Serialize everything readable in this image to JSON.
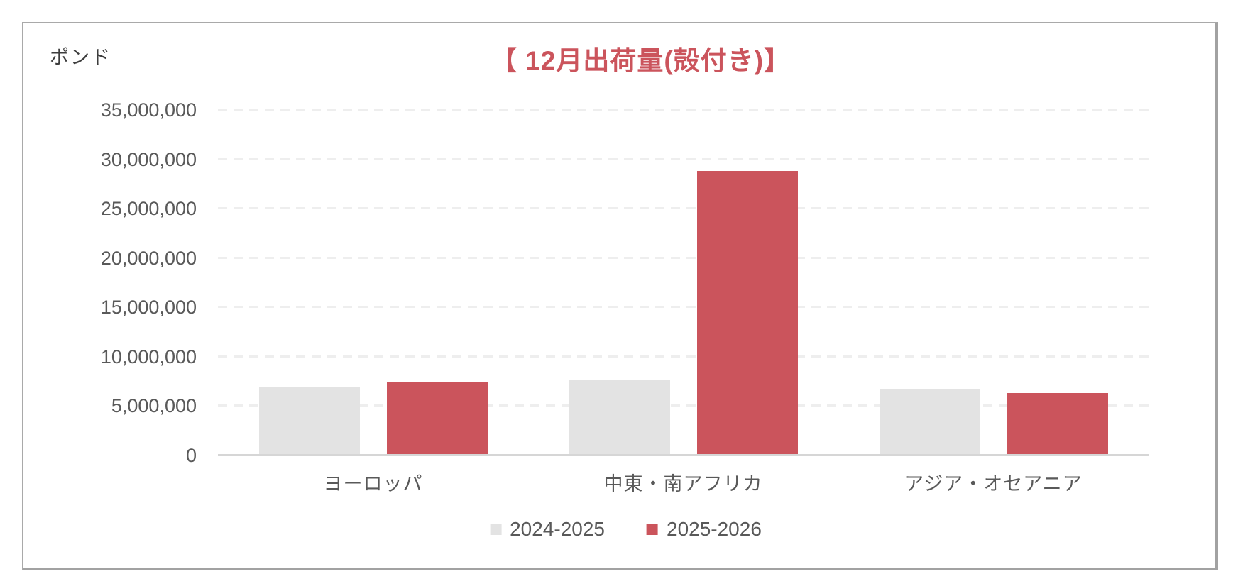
{
  "unit_label": "ポンド",
  "title": "【 12月出荷量(殻付き)】",
  "chart_data": {
    "type": "bar",
    "title": "【 12月出荷量(殻付き)】",
    "ylabel": "ポンド",
    "xlabel": "",
    "categories": [
      "ヨーロッパ",
      "中東・南アフリカ",
      "アジア・オセアニア"
    ],
    "series": [
      {
        "name": "2024-2025",
        "color": "#e3e3e3",
        "values": [
          7000000,
          7600000,
          6700000
        ]
      },
      {
        "name": "2025-2026",
        "color": "#cb545c",
        "values": [
          7500000,
          28800000,
          6300000
        ]
      }
    ],
    "ylim": [
      0,
      35000000
    ],
    "ytick_step": 5000000,
    "ytick_labels": [
      "0",
      "5,000,000",
      "10,000,000",
      "15,000,000",
      "20,000,000",
      "25,000,000",
      "30,000,000",
      "35,000,000"
    ],
    "grid": "horizontal-dashed",
    "legend_position": "bottom-center",
    "colors": {
      "title": "#cb545c",
      "axis_text": "#595959",
      "unit_text": "#3d3d3d",
      "axis_line": "#d6d6d6",
      "gridline": "#eeeeee",
      "frame_border": "#a9a9a9"
    }
  }
}
